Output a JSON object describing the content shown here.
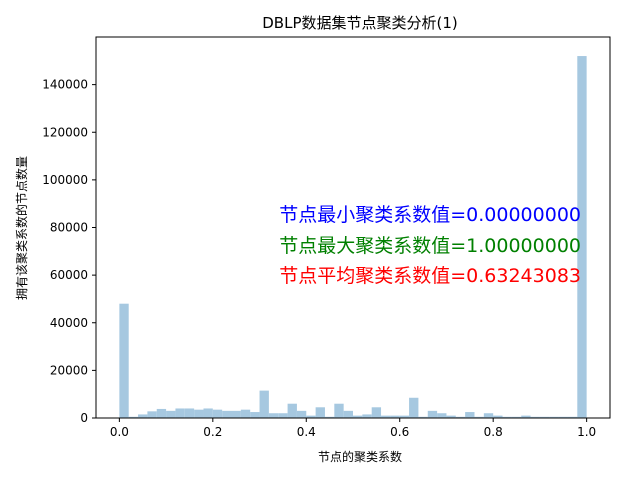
{
  "chart_data": {
    "type": "bar",
    "title": "DBLP数据集节点聚类分析(1)",
    "xlabel": "节点的聚类系数",
    "ylabel": "拥有该聚类系数的节点数量",
    "xlim": [
      -0.05,
      1.05
    ],
    "ylim": [
      0,
      160000
    ],
    "xticks": [
      0.0,
      0.2,
      0.4,
      0.6,
      0.8,
      1.0
    ],
    "xtick_labels": [
      "0.0",
      "0.2",
      "0.4",
      "0.6",
      "0.8",
      "1.0"
    ],
    "yticks": [
      0,
      20000,
      40000,
      60000,
      80000,
      100000,
      120000,
      140000
    ],
    "ytick_labels": [
      "0",
      "20000",
      "40000",
      "60000",
      "80000",
      "100000",
      "120000",
      "140000"
    ],
    "bar_color": "#a6c8e0",
    "bins": {
      "start": 0.0,
      "width": 0.02,
      "count": 50
    },
    "values": [
      48000,
      500,
      1500,
      2800,
      3800,
      3000,
      4000,
      4000,
      3500,
      4000,
      3500,
      3000,
      3000,
      3500,
      2500,
      11500,
      2000,
      2000,
      6000,
      3000,
      1000,
      4500,
      500,
      6000,
      3000,
      1000,
      1500,
      4500,
      1000,
      1000,
      1000,
      8500,
      500,
      3000,
      2000,
      1000,
      500,
      2500,
      500,
      2000,
      1000,
      500,
      500,
      1000,
      500,
      500,
      500,
      500,
      500,
      152000
    ]
  },
  "annotations": [
    {
      "text": "节点最小聚类系数值=0.00000000",
      "color": "#0000ff"
    },
    {
      "text": "节点最大聚类系数值=1.00000000",
      "color": "#008000"
    },
    {
      "text": "节点平均聚类系数值=0.63243083",
      "color": "#ff0000"
    }
  ]
}
